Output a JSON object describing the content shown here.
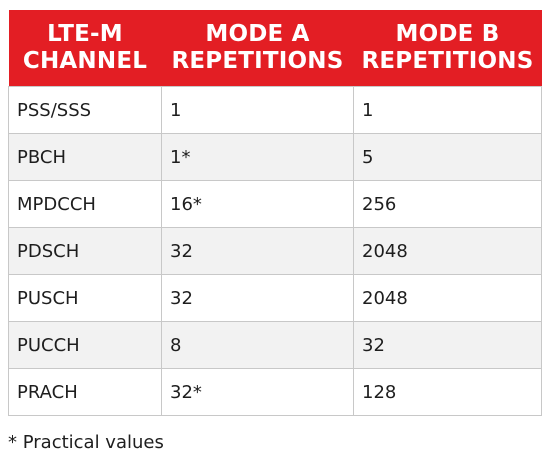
{
  "table": {
    "header_color": "#e31e24",
    "columns": [
      {
        "line1": "LTE-M",
        "line2": "CHANNEL"
      },
      {
        "line1": "MODE A",
        "line2": "REPETITIONS"
      },
      {
        "line1": "MODE B",
        "line2": "REPETITIONS"
      }
    ],
    "rows": [
      {
        "channel": "PSS/SSS",
        "mode_a": "1",
        "mode_b": "1"
      },
      {
        "channel": "PBCH",
        "mode_a": "1*",
        "mode_b": "5"
      },
      {
        "channel": "MPDCCH",
        "mode_a": "16*",
        "mode_b": "256"
      },
      {
        "channel": "PDSCH",
        "mode_a": "32",
        "mode_b": "2048"
      },
      {
        "channel": "PUSCH",
        "mode_a": "32",
        "mode_b": "2048"
      },
      {
        "channel": "PUCCH",
        "mode_a": "8",
        "mode_b": "32"
      },
      {
        "channel": "PRACH",
        "mode_a": "32*",
        "mode_b": "128"
      }
    ]
  },
  "footnote": "* Practical values"
}
